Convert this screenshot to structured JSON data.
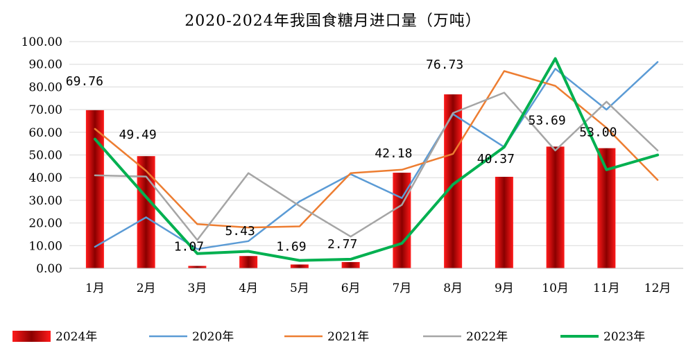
{
  "chart_data": {
    "type": "bar",
    "title": "2020-2024年我国食糖月进口量（万吨）",
    "categories": [
      "1月",
      "2月",
      "3月",
      "4月",
      "5月",
      "6月",
      "7月",
      "8月",
      "9月",
      "10月",
      "11月",
      "12月"
    ],
    "ylim": [
      0,
      100
    ],
    "yticks": [
      "0.00",
      "10.00",
      "20.00",
      "30.00",
      "40.00",
      "50.00",
      "60.00",
      "70.00",
      "80.00",
      "90.00",
      "100.00"
    ],
    "grid": true,
    "legend_position": "bottom",
    "bar_series": {
      "name": "2024年",
      "values": [
        69.76,
        49.49,
        1.07,
        5.43,
        1.69,
        2.77,
        42.18,
        76.73,
        40.37,
        53.69,
        53.0,
        null
      ],
      "labels": [
        "69.76",
        "49.49",
        "1.07",
        "5.43",
        "1.69",
        "2.77",
        "42.18",
        "76.73",
        "40.37",
        "53.69",
        "53.00",
        ""
      ],
      "color": "#e00000"
    },
    "line_series": [
      {
        "name": "2020年",
        "color": "#5b9bd5",
        "width": 2.5,
        "values": [
          9.5,
          22.5,
          8.5,
          12.0,
          29.5,
          41.5,
          31.0,
          68.0,
          53.5,
          88.0,
          70.0,
          91.0
        ]
      },
      {
        "name": "2021年",
        "color": "#ed7d31",
        "width": 2.5,
        "values": [
          61.5,
          43.0,
          19.5,
          18.0,
          18.5,
          42.0,
          43.5,
          50.5,
          87.0,
          80.5,
          62.0,
          39.0
        ]
      },
      {
        "name": "2022年",
        "color": "#a5a5a5",
        "width": 2.5,
        "values": [
          41.0,
          40.5,
          12.5,
          42.0,
          27.5,
          14.0,
          28.0,
          68.5,
          77.5,
          52.0,
          73.5,
          52.0
        ]
      },
      {
        "name": "2023年",
        "color": "#00b050",
        "width": 4,
        "values": [
          57.0,
          31.5,
          6.5,
          7.5,
          3.5,
          4.0,
          11.0,
          37.0,
          53.5,
          92.5,
          43.5,
          50.0
        ]
      }
    ]
  }
}
